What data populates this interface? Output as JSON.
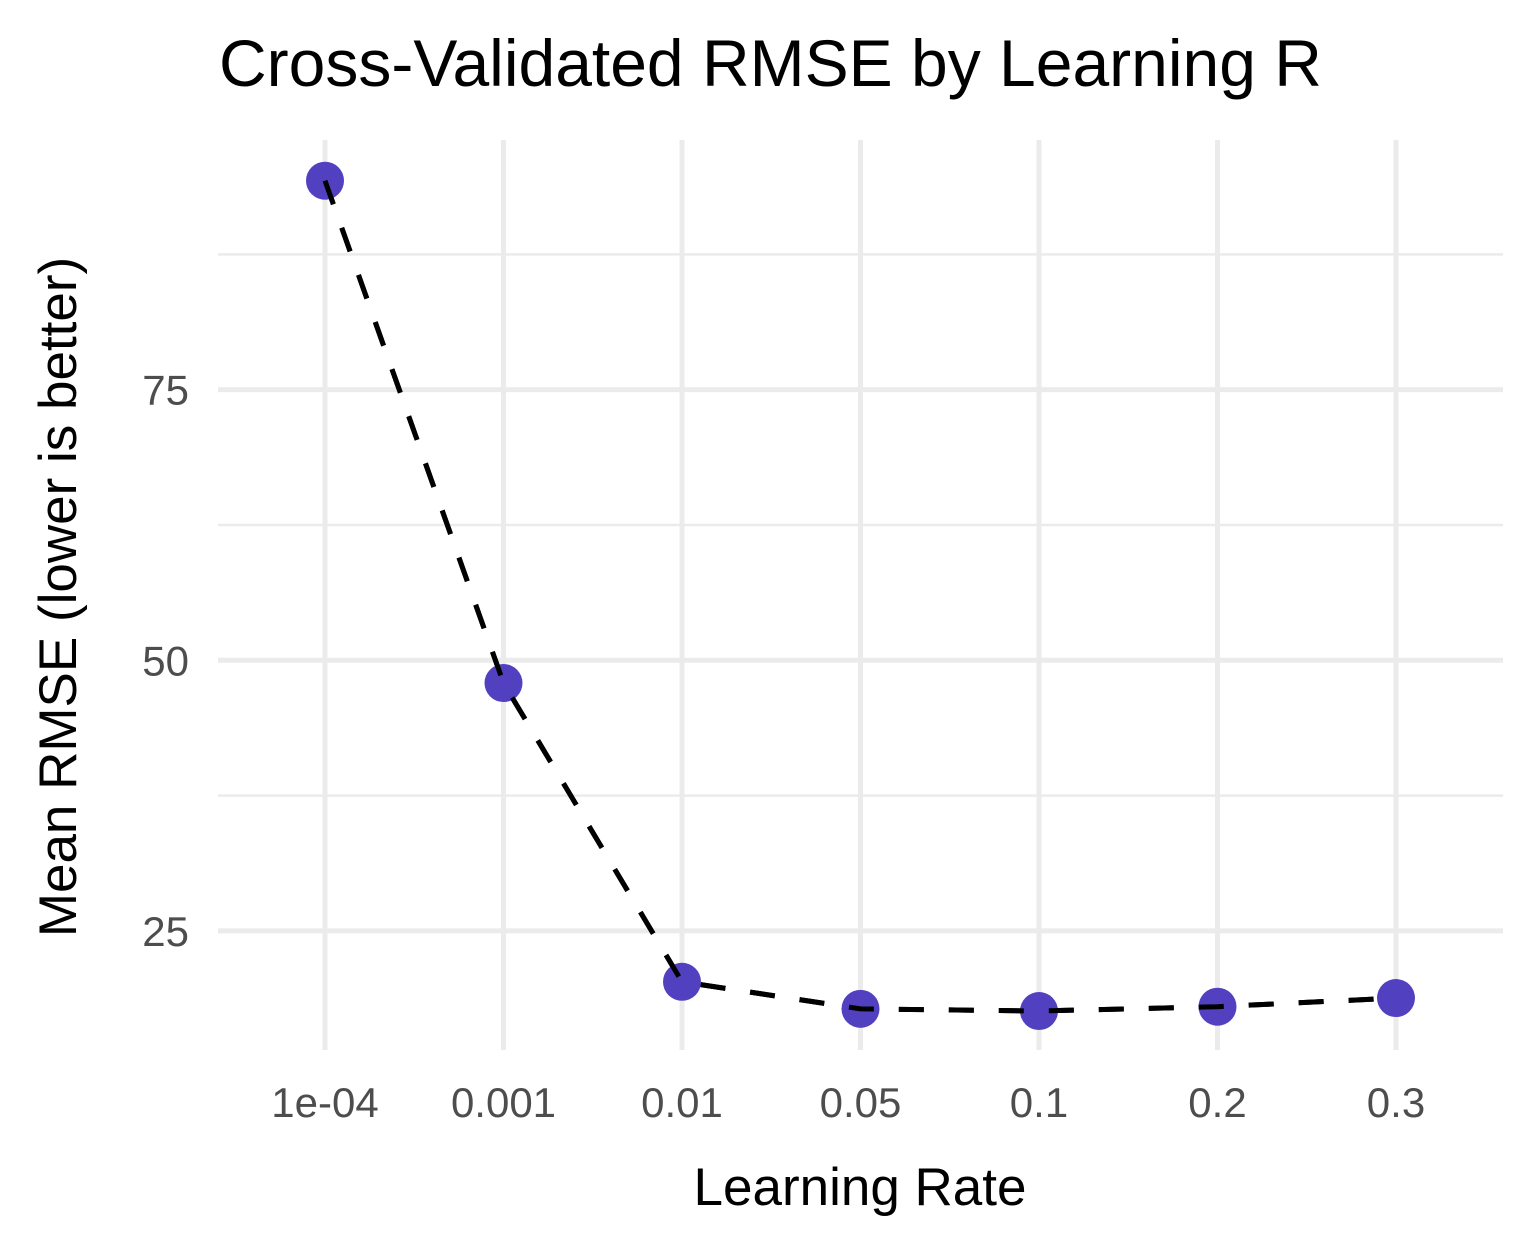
{
  "chart_data": {
    "type": "line",
    "title": "Cross-Validated RMSE by Learning R",
    "xlabel": "Learning Rate",
    "ylabel": "Mean RMSE (lower is better)",
    "categories": [
      "1e-04",
      "0.001",
      "0.01",
      "0.05",
      "0.1",
      "0.2",
      "0.3"
    ],
    "series": [
      {
        "name": "Mean RMSE",
        "values": [
          94.3,
          47.9,
          20.3,
          17.8,
          17.6,
          18.0,
          18.8
        ],
        "color": "#5140C0",
        "line_color": "#000000",
        "line_style": "dashed"
      }
    ],
    "ylim": [
      14.0,
      98.06
    ],
    "yticks": [
      25,
      50,
      75
    ],
    "ytick_labels": [
      "25",
      "50",
      "75"
    ],
    "y_minor_ticks": [
      37.5,
      62.5,
      87.5
    ],
    "grid": true,
    "legend": "none",
    "grid_color": "#EBEBEB"
  }
}
